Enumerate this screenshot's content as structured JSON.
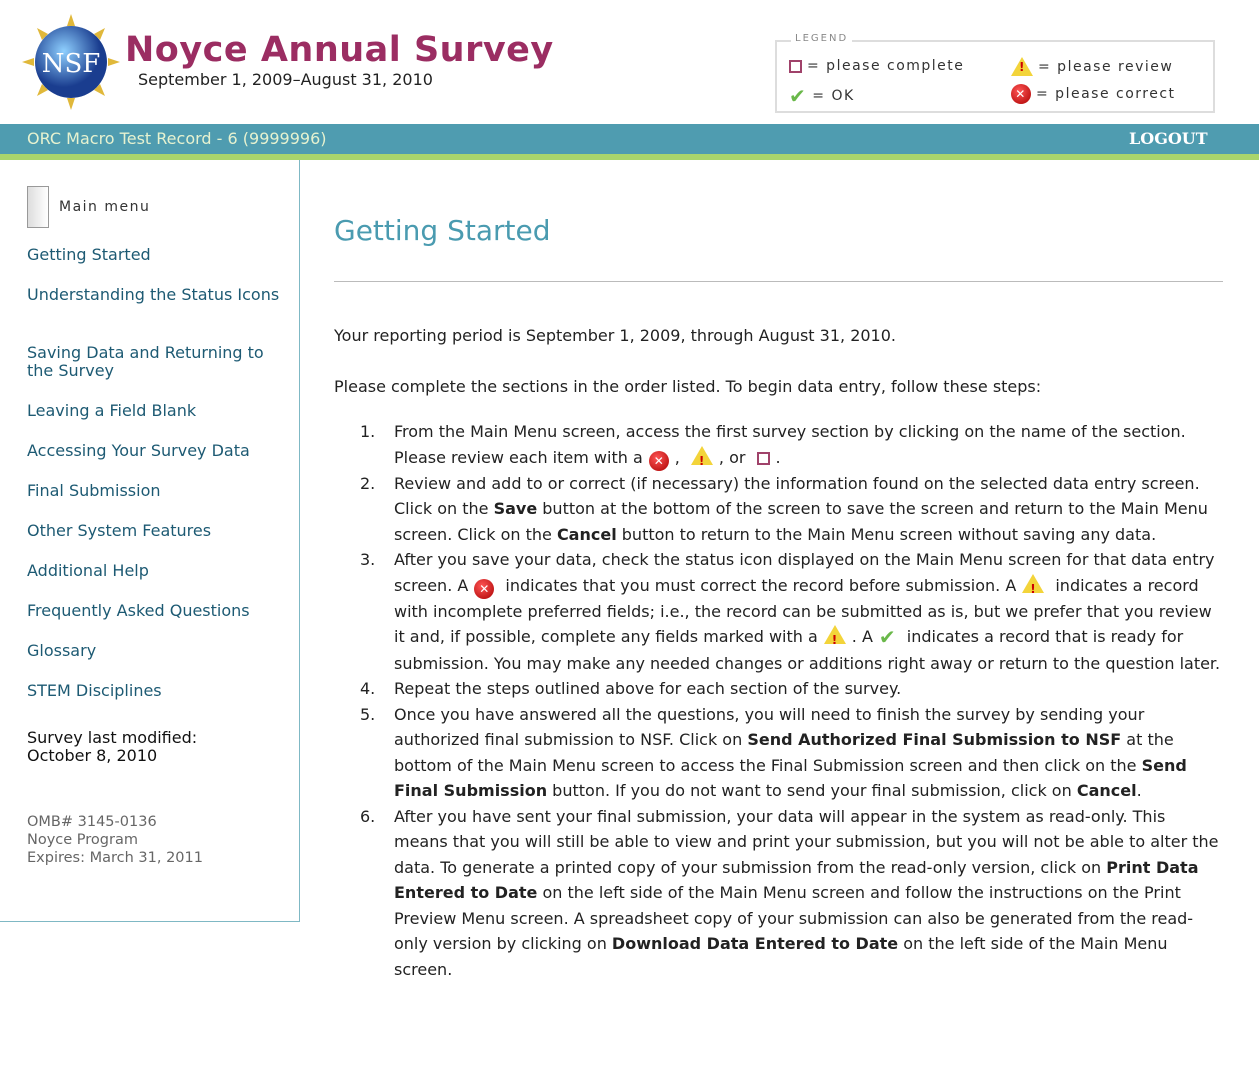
{
  "header": {
    "logo_text": "NSF",
    "title": "Noyce Annual Survey",
    "subtitle": "September 1, 2009–August 31, 2010"
  },
  "legend": {
    "title": "LEGEND",
    "items": [
      {
        "icon": "square-outline-icon",
        "label": "= please complete"
      },
      {
        "icon": "warning-icon",
        "label": "= please review"
      },
      {
        "icon": "check-icon",
        "label": "= OK"
      },
      {
        "icon": "error-x-icon",
        "label": "= please correct"
      }
    ]
  },
  "bar": {
    "record": "ORC Macro Test Record - 6 (9999996)",
    "logout": "LOGOUT"
  },
  "sidebar": {
    "main_menu": "Main menu",
    "items": [
      "Getting Started",
      "Understanding the Status Icons",
      "Saving Data and Returning to the Survey",
      "Leaving a Field Blank",
      "Accessing Your Survey Data",
      "Final Submission",
      "Other System Features",
      "Additional Help",
      "Frequently Asked Questions",
      "Glossary",
      "STEM Disciplines"
    ],
    "modified_label": "Survey last modified:",
    "modified_date": "October 8, 2010",
    "omb": "OMB# 3145-0136",
    "program": "Noyce Program",
    "expires": "Expires: March 31, 2011"
  },
  "main": {
    "title": "Getting Started",
    "p1": "Your reporting period is September 1, 2009, through August 31, 2010.",
    "p2": "Please complete the sections in the order listed. To begin data entry, follow these steps:",
    "steps": [
      {
        "num": "1.",
        "segs": [
          {
            "t": "From the Main Menu screen, access the first survey section by clicking on the name of the section. Please review each item with a"
          },
          {
            "i": "x"
          },
          {
            "t": ", "
          },
          {
            "i": "w"
          },
          {
            "t": ", or "
          },
          {
            "i": "s"
          },
          {
            "t": "."
          }
        ]
      },
      {
        "num": "2.",
        "segs": [
          {
            "t": "Review and add to or correct (if necessary) the information found on the selected data entry screen. Click on the "
          },
          {
            "b": "Save"
          },
          {
            "t": " button at the bottom of the screen to save the screen and return to the Main Menu screen. Click on the "
          },
          {
            "b": "Cancel"
          },
          {
            "t": " button to return to the Main Menu screen without saving any data."
          }
        ]
      },
      {
        "num": "3.",
        "segs": [
          {
            "t": "After you save your data, check the status icon displayed on the Main Menu screen for that data entry screen. A"
          },
          {
            "i": "x"
          },
          {
            "t": " indicates that you must correct the record before submission. A"
          },
          {
            "i": "w"
          },
          {
            "t": " indicates a record with incomplete preferred fields; i.e., the record can be submitted as is, but we prefer that you review it and, if possible, complete any fields marked with a"
          },
          {
            "i": "w"
          },
          {
            "t": ". A"
          },
          {
            "i": "c"
          },
          {
            "t": " indicates a record that is ready for submission. You may make any needed changes or additions right away or return to the question later."
          }
        ]
      },
      {
        "num": "4.",
        "segs": [
          {
            "t": "Repeat the steps outlined above for each section of the survey."
          }
        ]
      },
      {
        "num": "5.",
        "segs": [
          {
            "t": "Once you have answered all the questions, you will need to finish the survey by sending your authorized final submission to NSF. Click on "
          },
          {
            "b": "Send Authorized Final Submission to NSF"
          },
          {
            "t": " at the bottom of the Main Menu screen to access the Final Submission screen and then click on the "
          },
          {
            "b": "Send Final Submission"
          },
          {
            "t": " button. If you do not want to send your final submission, click on "
          },
          {
            "b": "Cancel"
          },
          {
            "t": "."
          }
        ]
      },
      {
        "num": "6.",
        "segs": [
          {
            "t": "After you have sent your final submission, your data will appear in the system as read-only. This means that you will still be able to view and print your submission, but you will not be able to alter the data. To generate a printed copy of your submission from the read-only version, click on "
          },
          {
            "b": "Print Data Entered to Date"
          },
          {
            "t": " on the left side of the Main Menu screen and follow the instructions on the Print Preview Menu screen. A spreadsheet copy of your submission can also be generated from the read-only version by clicking on "
          },
          {
            "b": "Download Data Entered to Date"
          },
          {
            "t": " on the left side of the Main Menu screen."
          }
        ]
      }
    ]
  },
  "colors": {
    "title": "#9b2d62",
    "bar": "#4f9cb0",
    "accent_bar": "#a9d56c",
    "heading": "#4a9bb0",
    "link": "#1d5a73"
  }
}
